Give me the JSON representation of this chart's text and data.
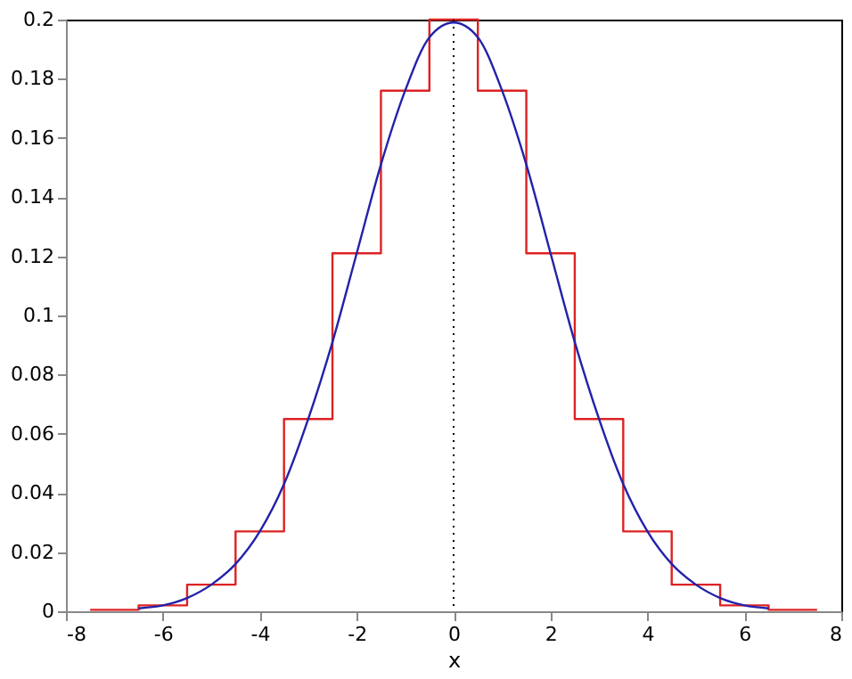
{
  "chart_data": {
    "type": "line",
    "xlabel": "x",
    "xlim": [
      -8,
      8
    ],
    "xticks": [
      -8,
      -6,
      -4,
      -2,
      0,
      2,
      4,
      6,
      8
    ],
    "ylim": [
      0,
      0.2
    ],
    "yticks": [
      0,
      0.02,
      0.04,
      0.06,
      0.08,
      0.1,
      0.12,
      0.14,
      0.16,
      0.18,
      0.2
    ],
    "grid": false,
    "marker": "none",
    "series": [
      {
        "type": "step",
        "color": "#dd2222",
        "x": [
          -7.5,
          -6.5,
          -5.5,
          -4.5,
          -3.5,
          -2.5,
          -1.5,
          -0.5,
          0.5,
          1.5,
          2.5,
          3.5,
          4.5,
          5.5,
          6.5,
          7.5
        ],
        "values": [
          0.0005,
          0.002,
          0.009,
          0.027,
          0.065,
          0.121,
          0.176,
          0.2,
          0.176,
          0.121,
          0.065,
          0.027,
          0.009,
          0.002,
          0.0005,
          0.0005
        ]
      },
      {
        "type": "line",
        "color": "#2222aa",
        "x": [
          -6.5,
          -6,
          -5.5,
          -5,
          -4.5,
          -4,
          -3.5,
          -3,
          -2.5,
          -2,
          -1.5,
          -1,
          -0.5,
          0,
          0.5,
          1,
          1.5,
          2,
          2.5,
          3,
          3.5,
          4,
          4.5,
          5,
          5.5,
          6,
          6.5
        ],
        "values": [
          0.001,
          0.002,
          0.0045,
          0.009,
          0.016,
          0.027,
          0.043,
          0.065,
          0.091,
          0.121,
          0.151,
          0.176,
          0.194,
          0.199,
          0.194,
          0.176,
          0.151,
          0.121,
          0.091,
          0.065,
          0.043,
          0.027,
          0.016,
          0.009,
          0.0045,
          0.002,
          0.001
        ]
      }
    ],
    "ref_lines": [
      {
        "axis": "x",
        "value": 0,
        "color": "#000000",
        "line_style": "dotted"
      }
    ]
  }
}
